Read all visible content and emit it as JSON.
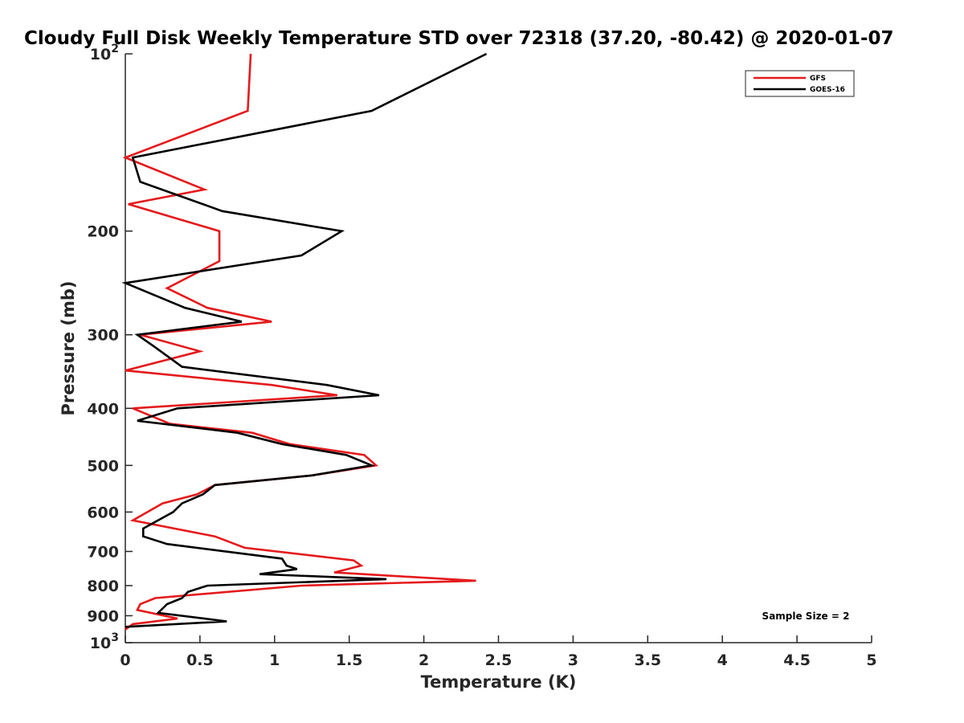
{
  "chart_data": {
    "type": "line",
    "title": "Cloudy Full Disk Weekly Temperature STD over 72318 (37.20, -80.42) @ 2020-01-07",
    "xlabel": "Temperature (K)",
    "ylabel": "Pressure (mb)",
    "xlim": [
      0,
      5
    ],
    "ylim": [
      100,
      1000
    ],
    "yscale": "log",
    "y_reversed": true,
    "grid": false,
    "legend_position": "top-right",
    "x_ticks": [
      {
        "value": 0,
        "label": "0"
      },
      {
        "value": 0.5,
        "label": "0.5"
      },
      {
        "value": 1,
        "label": "1"
      },
      {
        "value": 1.5,
        "label": "1.5"
      },
      {
        "value": 2,
        "label": "2"
      },
      {
        "value": 2.5,
        "label": "2.5"
      },
      {
        "value": 3,
        "label": "3"
      },
      {
        "value": 3.5,
        "label": "3.5"
      },
      {
        "value": 4,
        "label": "4"
      },
      {
        "value": 4.5,
        "label": "4.5"
      },
      {
        "value": 5,
        "label": "5"
      }
    ],
    "y_ticks": [
      {
        "value": 100,
        "label": "10",
        "sup": "2"
      },
      {
        "value": 200,
        "label": "200"
      },
      {
        "value": 300,
        "label": "300"
      },
      {
        "value": 400,
        "label": "400"
      },
      {
        "value": 500,
        "label": "500"
      },
      {
        "value": 600,
        "label": "600"
      },
      {
        "value": 700,
        "label": "700"
      },
      {
        "value": 800,
        "label": "800"
      },
      {
        "value": 900,
        "label": "900"
      },
      {
        "value": 1000,
        "label": "10",
        "sup": "3"
      }
    ],
    "annotation": "Sample Size = 2",
    "series": [
      {
        "name": "GFS",
        "color": "#e41a1c",
        "points": [
          [
            0.84,
            100
          ],
          [
            0.82,
            125
          ],
          [
            0.0,
            150
          ],
          [
            0.53,
            170
          ],
          [
            0.02,
            180
          ],
          [
            0.63,
            200
          ],
          [
            0.63,
            225
          ],
          [
            0.28,
            250
          ],
          [
            0.55,
            270
          ],
          [
            0.98,
            285
          ],
          [
            0.1,
            300
          ],
          [
            0.5,
            320
          ],
          [
            0.0,
            345
          ],
          [
            0.98,
            365
          ],
          [
            1.42,
            380
          ],
          [
            0.05,
            400
          ],
          [
            0.3,
            425
          ],
          [
            0.85,
            440
          ],
          [
            1.1,
            460
          ],
          [
            1.6,
            480
          ],
          [
            1.68,
            500
          ],
          [
            1.25,
            520
          ],
          [
            0.6,
            540
          ],
          [
            0.48,
            560
          ],
          [
            0.25,
            580
          ],
          [
            0.05,
            620
          ],
          [
            0.6,
            660
          ],
          [
            0.8,
            690
          ],
          [
            1.53,
            725
          ],
          [
            1.58,
            740
          ],
          [
            1.4,
            760
          ],
          [
            2.35,
            785
          ],
          [
            1.18,
            800
          ],
          [
            0.2,
            840
          ],
          [
            0.1,
            860
          ],
          [
            0.08,
            880
          ],
          [
            0.35,
            910
          ],
          [
            0.05,
            930
          ],
          [
            0.0,
            950
          ]
        ]
      },
      {
        "name": "GOES-16",
        "color": "#000000",
        "points": [
          [
            2.42,
            100
          ],
          [
            1.65,
            125
          ],
          [
            0.05,
            150
          ],
          [
            0.1,
            165
          ],
          [
            0.65,
            185
          ],
          [
            1.45,
            200
          ],
          [
            1.18,
            220
          ],
          [
            0.0,
            245
          ],
          [
            0.4,
            270
          ],
          [
            0.78,
            285
          ],
          [
            0.08,
            300
          ],
          [
            0.2,
            315
          ],
          [
            0.38,
            340
          ],
          [
            1.35,
            365
          ],
          [
            1.7,
            380
          ],
          [
            0.35,
            400
          ],
          [
            0.08,
            420
          ],
          [
            0.75,
            440
          ],
          [
            1.05,
            460
          ],
          [
            1.48,
            480
          ],
          [
            1.65,
            500
          ],
          [
            1.25,
            520
          ],
          [
            0.6,
            540
          ],
          [
            0.52,
            560
          ],
          [
            0.38,
            580
          ],
          [
            0.32,
            600
          ],
          [
            0.12,
            640
          ],
          [
            0.12,
            660
          ],
          [
            0.28,
            680
          ],
          [
            1.05,
            720
          ],
          [
            1.08,
            740
          ],
          [
            1.15,
            750
          ],
          [
            0.9,
            765
          ],
          [
            1.75,
            780
          ],
          [
            0.55,
            800
          ],
          [
            0.42,
            820
          ],
          [
            0.38,
            840
          ],
          [
            0.28,
            860
          ],
          [
            0.22,
            890
          ],
          [
            0.68,
            920
          ],
          [
            0.0,
            940
          ]
        ]
      }
    ]
  }
}
